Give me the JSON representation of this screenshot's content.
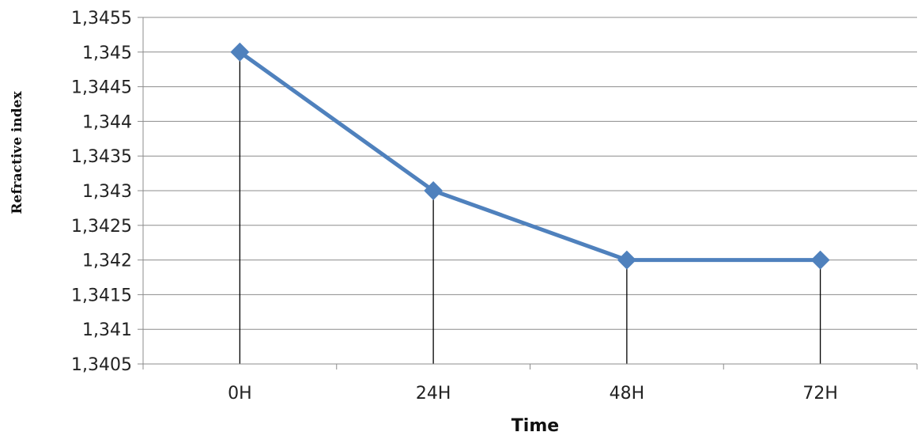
{
  "chart_data": {
    "type": "line",
    "title": "",
    "xlabel": "Time",
    "ylabel": "Refractive index",
    "categories": [
      "0H",
      "24H",
      "48H",
      "72H"
    ],
    "series": [
      {
        "values": [
          1.345,
          1.343,
          1.342,
          1.342
        ],
        "color": "#4F81BD"
      }
    ],
    "ylim": [
      1.3405,
      1.3455
    ],
    "ytick_step": 0.0005,
    "ytick_labels": [
      "1,3405",
      "1,341",
      "1,3415",
      "1,342",
      "1,3425",
      "1,343",
      "1,3435",
      "1,344",
      "1,3445",
      "1,345",
      "1,3455"
    ],
    "grid": true,
    "drop_lines": true,
    "legend": "none",
    "marker": "diamond"
  }
}
